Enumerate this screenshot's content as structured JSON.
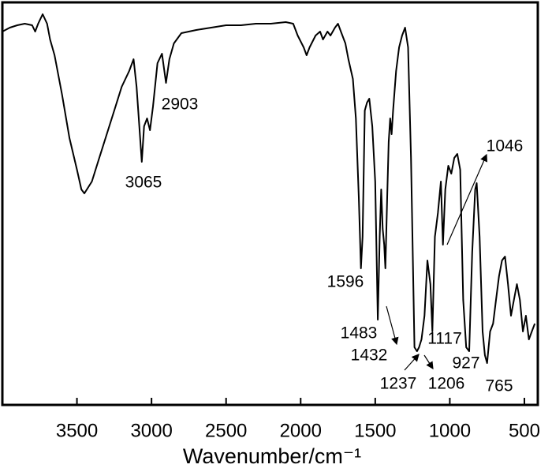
{
  "chart_data": {
    "type": "line",
    "x_label": "Wavenumber/cm⁻¹",
    "x": [
      4000,
      3950,
      3900,
      3850,
      3800,
      3780,
      3760,
      3730,
      3700,
      3680,
      3650,
      3600,
      3550,
      3500,
      3470,
      3450,
      3400,
      3350,
      3300,
      3250,
      3200,
      3150,
      3120,
      3100,
      3065,
      3050,
      3030,
      3010,
      2990,
      2960,
      2930,
      2903,
      2880,
      2850,
      2800,
      2700,
      2600,
      2500,
      2400,
      2300,
      2200,
      2100,
      2050,
      2020,
      1980,
      1960,
      1940,
      1900,
      1870,
      1850,
      1820,
      1800,
      1770,
      1750,
      1730,
      1700,
      1680,
      1650,
      1630,
      1610,
      1596,
      1585,
      1570,
      1555,
      1540,
      1520,
      1500,
      1483,
      1470,
      1460,
      1450,
      1440,
      1432,
      1420,
      1410,
      1400,
      1390,
      1380,
      1360,
      1340,
      1320,
      1300,
      1280,
      1260,
      1237,
      1220,
      1206,
      1190,
      1170,
      1150,
      1130,
      1117,
      1100,
      1080,
      1060,
      1046,
      1030,
      1010,
      990,
      970,
      950,
      930,
      910,
      890,
      870,
      850,
      830,
      820,
      800,
      780,
      765,
      750,
      730,
      710,
      690,
      670,
      650,
      630,
      610,
      590,
      570,
      550,
      530,
      510,
      490,
      470,
      450,
      430
    ],
    "series": [
      {
        "color": "#000000",
        "values": [
          473,
          478,
          481,
          483,
          481,
          473,
          483,
          495,
          483,
          463,
          443,
          393,
          338,
          298,
          273,
          268,
          283,
          313,
          343,
          373,
          403,
          423,
          438,
          403,
          308,
          353,
          363,
          348,
          378,
          433,
          445,
          408,
          438,
          458,
          471,
          475,
          478,
          481,
          481,
          483,
          483,
          485,
          483,
          468,
          453,
          443,
          453,
          468,
          473,
          463,
          473,
          468,
          478,
          483,
          473,
          458,
          438,
          413,
          363,
          263,
          173,
          213,
          373,
          383,
          388,
          353,
          283,
          108,
          213,
          273,
          223,
          203,
          173,
          263,
          333,
          363,
          343,
          373,
          423,
          453,
          468,
          478,
          453,
          313,
          73,
          68,
          73,
          83,
          113,
          183,
          153,
          93,
          213,
          243,
          283,
          203,
          273,
          303,
          293,
          313,
          318,
          298,
          133,
          73,
          68,
          193,
          273,
          281,
          213,
          93,
          63,
          53,
          93,
          103,
          133,
          163,
          183,
          188,
          153,
          113,
          133,
          153,
          133,
          93,
          113,
          83,
          93,
          103
        ]
      }
    ],
    "xlim": [
      4000,
      410
    ],
    "ylim": [
      0,
      510
    ],
    "xticks": [
      3500,
      3000,
      2500,
      2000,
      1500,
      1000,
      500
    ],
    "annotations": [
      "3065",
      "2903",
      "1596",
      "1483",
      "1432",
      "1237",
      "1206",
      "1117",
      "927",
      "765",
      "1046"
    ]
  }
}
